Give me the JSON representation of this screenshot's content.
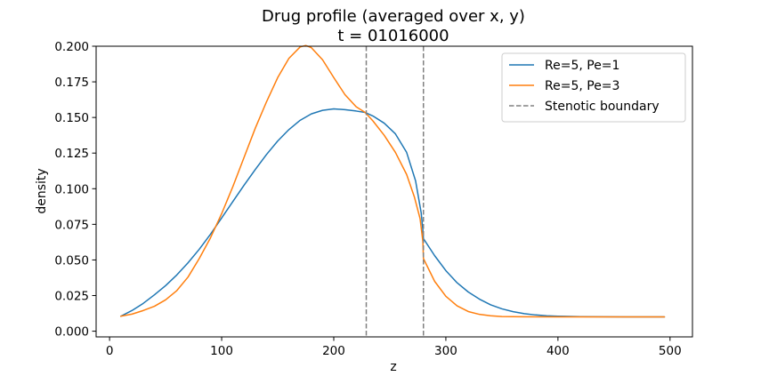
{
  "chart_data": {
    "type": "line",
    "title": "Drug profile (averaged over x, y)",
    "subtitle": "t = 01016000",
    "xlabel": "z",
    "ylabel": "density",
    "xlim": [
      -12,
      520
    ],
    "ylim": [
      -0.004,
      0.2
    ],
    "xticks": [
      {
        "value": 0,
        "label": "0"
      },
      {
        "value": 100,
        "label": "100"
      },
      {
        "value": 200,
        "label": "200"
      },
      {
        "value": 300,
        "label": "300"
      },
      {
        "value": 400,
        "label": "400"
      },
      {
        "value": 500,
        "label": "500"
      }
    ],
    "yticks": [
      {
        "value": 0.0,
        "label": "0.000"
      },
      {
        "value": 0.025,
        "label": "0.025"
      },
      {
        "value": 0.05,
        "label": "0.050"
      },
      {
        "value": 0.075,
        "label": "0.075"
      },
      {
        "value": 0.1,
        "label": "0.100"
      },
      {
        "value": 0.125,
        "label": "0.125"
      },
      {
        "value": 0.15,
        "label": "0.150"
      },
      {
        "value": 0.175,
        "label": "0.175"
      },
      {
        "value": 0.2,
        "label": "0.200"
      }
    ],
    "grid": false,
    "legend_position": "top-right",
    "series": [
      {
        "name": "Re=5, Pe=1",
        "color": "#1f77b4",
        "points": [
          [
            10,
            0.0105
          ],
          [
            20,
            0.0145
          ],
          [
            30,
            0.0195
          ],
          [
            40,
            0.0255
          ],
          [
            50,
            0.032
          ],
          [
            60,
            0.0395
          ],
          [
            70,
            0.048
          ],
          [
            80,
            0.0575
          ],
          [
            90,
            0.068
          ],
          [
            100,
            0.0795
          ],
          [
            110,
            0.091
          ],
          [
            120,
            0.1025
          ],
          [
            130,
            0.1135
          ],
          [
            140,
            0.124
          ],
          [
            150,
            0.1335
          ],
          [
            160,
            0.1415
          ],
          [
            170,
            0.148
          ],
          [
            180,
            0.1525
          ],
          [
            190,
            0.155
          ],
          [
            200,
            0.156
          ],
          [
            210,
            0.1555
          ],
          [
            220,
            0.1545
          ],
          [
            228,
            0.1535
          ],
          [
            235,
            0.151
          ],
          [
            245,
            0.146
          ],
          [
            255,
            0.1385
          ],
          [
            265,
            0.1255
          ],
          [
            273,
            0.1055
          ],
          [
            278,
            0.083
          ],
          [
            279.5,
            0.071
          ],
          [
            280,
            0.065
          ],
          [
            290,
            0.053
          ],
          [
            300,
            0.0425
          ],
          [
            310,
            0.034
          ],
          [
            320,
            0.0275
          ],
          [
            330,
            0.0225
          ],
          [
            340,
            0.0185
          ],
          [
            350,
            0.0157
          ],
          [
            360,
            0.0137
          ],
          [
            370,
            0.0123
          ],
          [
            380,
            0.0114
          ],
          [
            390,
            0.0108
          ],
          [
            400,
            0.0105
          ],
          [
            420,
            0.0102
          ],
          [
            440,
            0.0101
          ],
          [
            460,
            0.01
          ],
          [
            480,
            0.01
          ],
          [
            495,
            0.01
          ]
        ]
      },
      {
        "name": "Re=5, Pe=3",
        "color": "#ff7f0e",
        "points": [
          [
            10,
            0.0105
          ],
          [
            20,
            0.012
          ],
          [
            30,
            0.0145
          ],
          [
            40,
            0.0175
          ],
          [
            50,
            0.022
          ],
          [
            60,
            0.0285
          ],
          [
            70,
            0.038
          ],
          [
            80,
            0.051
          ],
          [
            90,
            0.0655
          ],
          [
            100,
            0.0825
          ],
          [
            110,
            0.1015
          ],
          [
            120,
            0.122
          ],
          [
            130,
            0.1425
          ],
          [
            140,
            0.161
          ],
          [
            150,
            0.178
          ],
          [
            160,
            0.1915
          ],
          [
            170,
            0.1995
          ],
          [
            175,
            0.2005
          ],
          [
            180,
            0.199
          ],
          [
            190,
            0.1905
          ],
          [
            200,
            0.178
          ],
          [
            210,
            0.166
          ],
          [
            220,
            0.1575
          ],
          [
            228,
            0.1535
          ],
          [
            235,
            0.1475
          ],
          [
            245,
            0.1375
          ],
          [
            255,
            0.1255
          ],
          [
            265,
            0.11
          ],
          [
            272,
            0.094
          ],
          [
            277,
            0.079
          ],
          [
            279.5,
            0.063
          ],
          [
            280,
            0.051
          ],
          [
            290,
            0.035
          ],
          [
            300,
            0.0245
          ],
          [
            310,
            0.0178
          ],
          [
            320,
            0.0138
          ],
          [
            330,
            0.0118
          ],
          [
            340,
            0.0108
          ],
          [
            350,
            0.0103
          ],
          [
            370,
            0.0101
          ],
          [
            400,
            0.01
          ],
          [
            440,
            0.01
          ],
          [
            495,
            0.01
          ]
        ]
      }
    ],
    "vlines": {
      "name": "Stenotic boundary",
      "color": "#808080",
      "x": [
        229,
        280
      ]
    }
  }
}
